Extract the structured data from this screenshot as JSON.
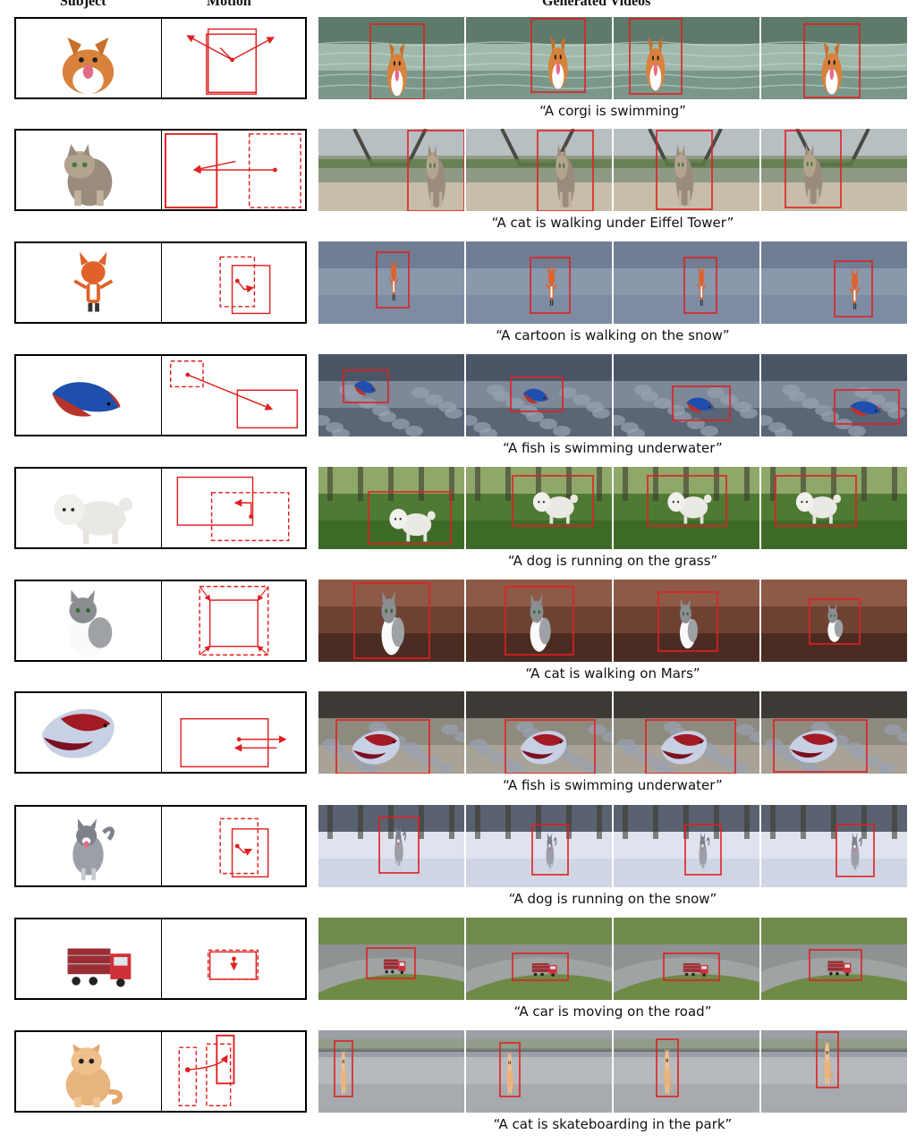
{
  "headers": {
    "subject": "Subject",
    "motion": "Motion",
    "generated_videos": "Generated Videos"
  },
  "rows": [
    {
      "subject": "corgi dog",
      "caption": "“A corgi is swimming”",
      "scene": "water"
    },
    {
      "subject": "tabby cat",
      "caption": "“A cat is walking under Eiffel Tower”",
      "scene": "eiffel"
    },
    {
      "subject": "cartoon fox",
      "caption": "“A cartoon is walking on the snow”",
      "scene": "snowplain"
    },
    {
      "subject": "betta fish",
      "caption": "“A fish is swimming underwater”",
      "scene": "rocks"
    },
    {
      "subject": "white poodle",
      "caption": "“A dog is running on the grass”",
      "scene": "grass"
    },
    {
      "subject": "grey white cat",
      "caption": "“A cat is walking on Mars”",
      "scene": "mars"
    },
    {
      "subject": "red betta fish",
      "caption": "“A fish is swimming underwater”",
      "scene": "pebbles"
    },
    {
      "subject": "husky dog",
      "caption": "“A dog is running on the snow”",
      "scene": "snowforest"
    },
    {
      "subject": "red truck",
      "caption": "“A car is moving on the road”",
      "scene": "road"
    },
    {
      "subject": "kitten",
      "caption": "“A cat is skateboarding in the park”",
      "scene": "park"
    }
  ],
  "colors": {
    "box": "#e02020",
    "border": "#000000"
  }
}
